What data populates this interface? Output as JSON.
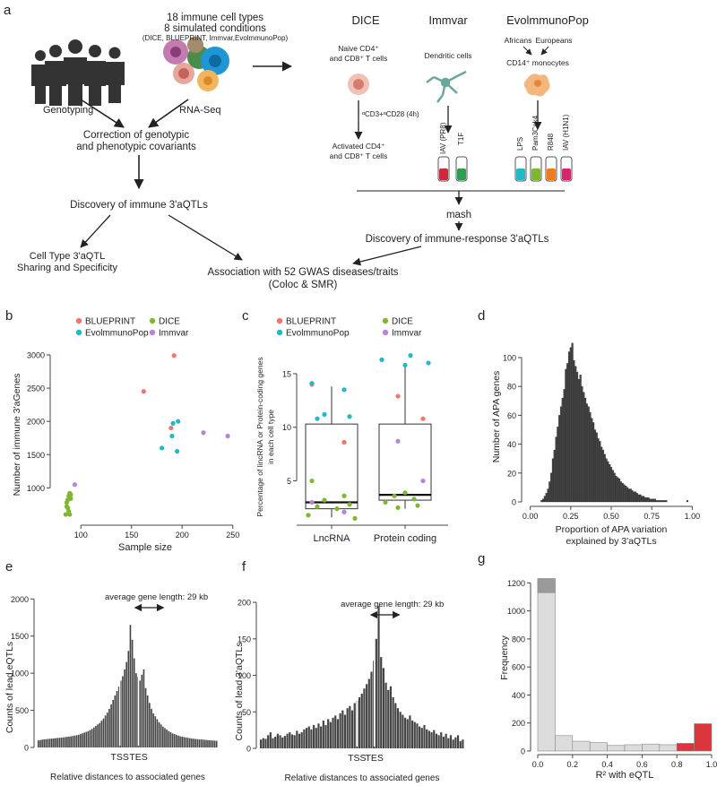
{
  "panel_labels": {
    "a": "a",
    "b": "b",
    "c": "c",
    "d": "d",
    "e": "e",
    "f": "f",
    "g": "g"
  },
  "panel_a": {
    "cell_types": "18 immune cell types",
    "conditions": "8 simulated conditions",
    "sources": "(DICE, BLUEPRINT, Immvar,EvolmmunoPop)",
    "genotyping": "Genotyping",
    "rnaseq": "RNA-Seq",
    "correction_1": "Correction of genotypic",
    "correction_2": "and phenotypic covariants",
    "discovery": "Discovery of immune 3'aQTLs",
    "celltype_1": "Cell Type 3'aQTL",
    "celltype_2": "Sharing and Specificity",
    "gwas_1": "Association with 52 GWAS diseases/traits",
    "gwas_2": "(Coloc & SMR)",
    "dice": "DICE",
    "immvar": "Immvar",
    "evo": "EvolmmunoPop",
    "naive_1": "Naive CD4⁺",
    "naive_2": "and CD8⁺ T cells",
    "stim": "ᵅCD3+ᵅCD28 (4h)",
    "activated_1": "Activated CD4⁺",
    "activated_2": "and CD8⁺ T cells",
    "dendritic": "Dendritic cells",
    "iav_pr8": "IAV (PR8)",
    "ifn": "T1F",
    "africans": "Africans",
    "europeans": "Europeans",
    "monocytes": "CD14⁺ monocytes",
    "lps": "LPS",
    "pam": "Pam3Csk4",
    "r848": "R848",
    "iav_h1n1": "IAV (H1N1)",
    "mash": "mash",
    "response": "Discovery of immune-response 3'aQTLs"
  },
  "colors": {
    "blueprint": "#f0766e",
    "dice": "#7cb832",
    "evo": "#22b8c6",
    "immvar": "#b784d8",
    "bar_dark": "#444444",
    "g_light": "#dcdcdc",
    "g_red": "#d9363e"
  },
  "chart_data": [
    {
      "id": "b",
      "type": "scatter",
      "ylabel": "Number of immune 3'aGenes",
      "xlabel": "Sample size",
      "xticks": [
        100,
        150,
        200,
        250
      ],
      "yticks": [
        500,
        1000,
        1500,
        2000,
        2500,
        3000
      ],
      "xlim": [
        75,
        252
      ],
      "ylim": [
        520,
        3080
      ],
      "legend": [
        "BLUEPRINT",
        "DICE",
        "EvolmmunoPop",
        "Immvar"
      ],
      "series": [
        {
          "name": "BLUEPRINT",
          "points": [
            [
              162,
              2450
            ],
            [
              192,
              2990
            ],
            [
              189,
              1900
            ]
          ]
        },
        {
          "name": "DICE",
          "points": [
            [
              85,
              600
            ],
            [
              86,
              720
            ],
            [
              87,
              820
            ],
            [
              88,
              880
            ],
            [
              89,
              920
            ],
            [
              90,
              840
            ],
            [
              88,
              650
            ],
            [
              86,
              780
            ],
            [
              87,
              700
            ],
            [
              89,
              600
            ],
            [
              90,
              900
            ]
          ]
        },
        {
          "name": "EvolmmunoPop",
          "points": [
            [
              180,
              1600
            ],
            [
              190,
              1780
            ],
            [
              191,
              1970
            ],
            [
              196,
              2000
            ],
            [
              195,
              1550
            ]
          ]
        },
        {
          "name": "Immvar",
          "points": [
            [
              94,
              1050
            ],
            [
              221,
              1830
            ],
            [
              245,
              1780
            ]
          ]
        }
      ]
    },
    {
      "id": "c",
      "type": "box",
      "ylabel_1": "Percentage of lincRNA or Protein-coding genes",
      "ylabel_2": "in each cell type",
      "categories": [
        "LncRNA",
        "Protein coding"
      ],
      "yticks": [
        5,
        10,
        15
      ],
      "ylim": [
        1.2,
        17
      ],
      "legend": [
        "BLUEPRINT",
        "DICE",
        "EvolmmunoPop",
        "Immvar"
      ],
      "boxes": [
        {
          "min": 1.6,
          "q1": 2.4,
          "median": 3.0,
          "q3": 10.3,
          "max": 13.8
        },
        {
          "min": 2.4,
          "q1": 3.2,
          "median": 3.7,
          "q3": 10.3,
          "max": 16.0
        }
      ],
      "series": [
        {
          "name": "BLUEPRINT",
          "points": [
            [
              0,
              14.0
            ],
            [
              0,
              8.6
            ],
            [
              1,
              12.9
            ],
            [
              1,
              10.8
            ]
          ]
        },
        {
          "name": "DICE",
          "points": [
            [
              0,
              5.0
            ],
            [
              0,
              3.6
            ],
            [
              0,
              3.2
            ],
            [
              0,
              2.8
            ],
            [
              0,
              2.6
            ],
            [
              0,
              2.4
            ],
            [
              0,
              1.8
            ],
            [
              0,
              1.5
            ],
            [
              1,
              3.9
            ],
            [
              1,
              3.6
            ],
            [
              1,
              3.3
            ],
            [
              1,
              3.0
            ],
            [
              1,
              2.7
            ],
            [
              1,
              2.5
            ]
          ]
        },
        {
          "name": "EvolmmunoPop",
          "points": [
            [
              0,
              14.1
            ],
            [
              0,
              13.5
            ],
            [
              0,
              11.2
            ],
            [
              0,
              11.0
            ],
            [
              0,
              10.8
            ],
            [
              1,
              16.7
            ],
            [
              1,
              16.3
            ],
            [
              1,
              16.0
            ],
            [
              1,
              15.8
            ]
          ]
        },
        {
          "name": "Immvar",
          "points": [
            [
              0,
              3.0
            ],
            [
              0,
              2.1
            ],
            [
              1,
              8.7
            ],
            [
              1,
              5.0
            ]
          ]
        }
      ]
    },
    {
      "id": "d",
      "type": "bar",
      "ylabel": "Number of APA genes",
      "xlabel_1": "Proportion of APA variation",
      "xlabel_2": "explained by 3'aQTLs",
      "xticks": [
        0.0,
        0.25,
        0.5,
        0.75,
        1.0
      ],
      "xtick_labels": [
        "0.00",
        "0.25",
        "0.50",
        "0.75",
        "1.00"
      ],
      "yticks": [
        0,
        20,
        40,
        60,
        80,
        100
      ],
      "xlim": [
        -0.02,
        1.02
      ],
      "ylim": [
        0,
        118
      ],
      "bin_start": 0.065,
      "bin_width": 0.01,
      "values": [
        1,
        2,
        4,
        6,
        9,
        14,
        20,
        30,
        36,
        45,
        52,
        60,
        66,
        72,
        78,
        92,
        96,
        104,
        107,
        110,
        98,
        94,
        90,
        85,
        88,
        80,
        76,
        72,
        68,
        66,
        62,
        58,
        55,
        50,
        48,
        44,
        42,
        38,
        36,
        33,
        30,
        28,
        26,
        24,
        22,
        20,
        18,
        17,
        16,
        14,
        13,
        12,
        11,
        10,
        9,
        9,
        8,
        7,
        7,
        6,
        5,
        5,
        4,
        4,
        3,
        3,
        3,
        2,
        2,
        2,
        2,
        1,
        1,
        1,
        1,
        1,
        1,
        1,
        0,
        0,
        0,
        0,
        0,
        0,
        0,
        0,
        0,
        0,
        0,
        0,
        1
      ]
    },
    {
      "id": "e",
      "type": "bar",
      "ylabel": "Counts of lead eQTLs",
      "xlabel": "Relative distances to associated genes",
      "annotation": "average gene length: 29 kb",
      "tss": "TSS",
      "tes": "TES",
      "yticks": [
        0,
        500,
        1000,
        1500,
        2000
      ],
      "ylim": [
        0,
        2100
      ],
      "values": [
        95,
        100,
        105,
        110,
        112,
        115,
        118,
        120,
        122,
        125,
        128,
        130,
        133,
        136,
        140,
        143,
        146,
        150,
        155,
        160,
        165,
        170,
        180,
        190,
        200,
        210,
        220,
        235,
        250,
        270,
        290,
        310,
        330,
        360,
        390,
        430,
        470,
        520,
        580,
        640,
        700,
        760,
        820,
        900,
        960,
        1050,
        1150,
        1300,
        1650,
        1450,
        1200,
        1000,
        950,
        900,
        980,
        1050,
        800,
        700,
        600,
        520,
        460,
        420,
        380,
        340,
        310,
        280,
        260,
        240,
        220,
        205,
        190,
        180,
        170,
        160,
        150,
        145,
        140,
        135,
        130,
        125,
        120,
        118,
        115,
        112,
        110,
        108,
        105,
        103,
        100,
        98,
        96,
        94,
        92,
        90
      ]
    },
    {
      "id": "f",
      "type": "bar",
      "ylabel": "Counts of lead 3'aQTLs",
      "xlabel": "Relative distances to associated genes",
      "annotation": "average gene length: 29 kb",
      "tss": "TSS",
      "tes": "TES",
      "yticks": [
        0,
        50,
        100,
        150,
        200
      ],
      "ylim": [
        0,
        205
      ],
      "values": [
        12,
        14,
        13,
        18,
        22,
        14,
        16,
        20,
        18,
        15,
        17,
        20,
        22,
        19,
        18,
        24,
        20,
        22,
        26,
        28,
        30,
        26,
        32,
        28,
        34,
        30,
        38,
        32,
        40,
        36,
        42,
        45,
        40,
        48,
        52,
        46,
        55,
        58,
        52,
        62,
        66,
        70,
        75,
        82,
        88,
        95,
        105,
        120,
        150,
        195,
        125,
        110,
        90,
        80,
        85,
        70,
        62,
        55,
        50,
        46,
        42,
        40,
        45,
        38,
        36,
        34,
        30,
        28,
        32,
        26,
        24,
        22,
        25,
        20,
        18,
        22,
        16,
        20,
        14,
        18,
        12,
        15,
        18,
        10,
        12
      ]
    },
    {
      "id": "g",
      "type": "bar",
      "ylabel": "Frequency",
      "xlabel": "R² with eQTL",
      "xticks": [
        0.0,
        0.2,
        0.4,
        0.6,
        0.8,
        1.0
      ],
      "xtick_labels": [
        "0.0",
        "0.2",
        "0.4",
        "0.6",
        "0.8",
        "1.0"
      ],
      "yticks": [
        0,
        200,
        400,
        600,
        800,
        1000,
        1200
      ],
      "ylim": [
        0,
        1330
      ],
      "bins": [
        0.0,
        0.1,
        0.2,
        0.3,
        0.4,
        0.5,
        0.6,
        0.7,
        0.8,
        0.9
      ],
      "values": [
        1230,
        110,
        70,
        60,
        40,
        45,
        50,
        45,
        55,
        195
      ],
      "highlight": [
        100,
        0,
        0,
        0,
        0,
        0,
        0,
        0,
        45,
        195
      ]
    }
  ]
}
